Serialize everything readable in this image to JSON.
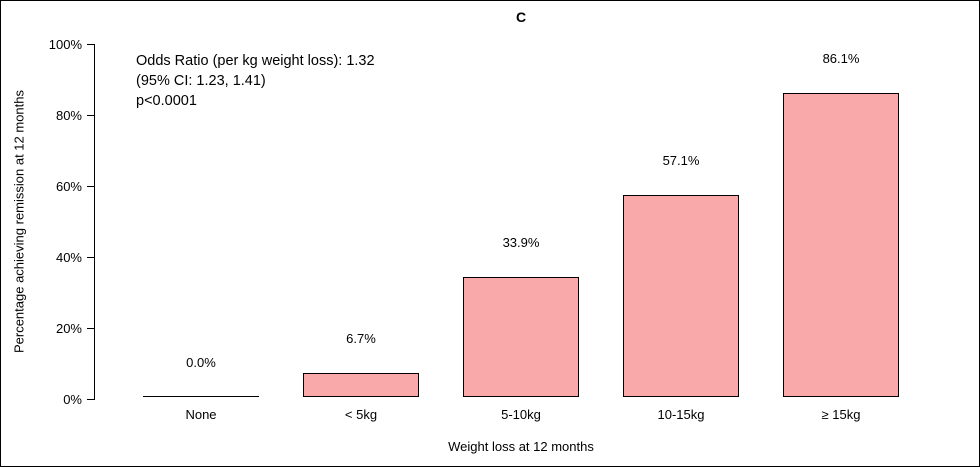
{
  "chart_data": {
    "type": "bar",
    "title": "C",
    "categories": [
      "None",
      "< 5kg",
      "5-10kg",
      "10-15kg",
      "≥ 15kg"
    ],
    "values": [
      0.0,
      6.7,
      33.9,
      57.1,
      86.1
    ],
    "value_labels": [
      "0.0%",
      "6.7%",
      "33.9%",
      "57.1%",
      "86.1%"
    ],
    "xlabel": "Weight loss at 12 months",
    "ylabel": "Percentage achieving remission at 12 months",
    "ylim": [
      0,
      100
    ],
    "ytick_values": [
      0,
      20,
      40,
      60,
      80,
      100
    ],
    "yticks": [
      "0%",
      "20%",
      "40%",
      "60%",
      "80%",
      "100%"
    ],
    "legend": "none",
    "grid": "off",
    "bar_color": "#F9A9A9",
    "bar_border_color": "#000000",
    "annotation": [
      "Odds Ratio (per kg weight loss): 1.32",
      "(95% CI: 1.23, 1.41)",
      "p<0.0001"
    ]
  }
}
